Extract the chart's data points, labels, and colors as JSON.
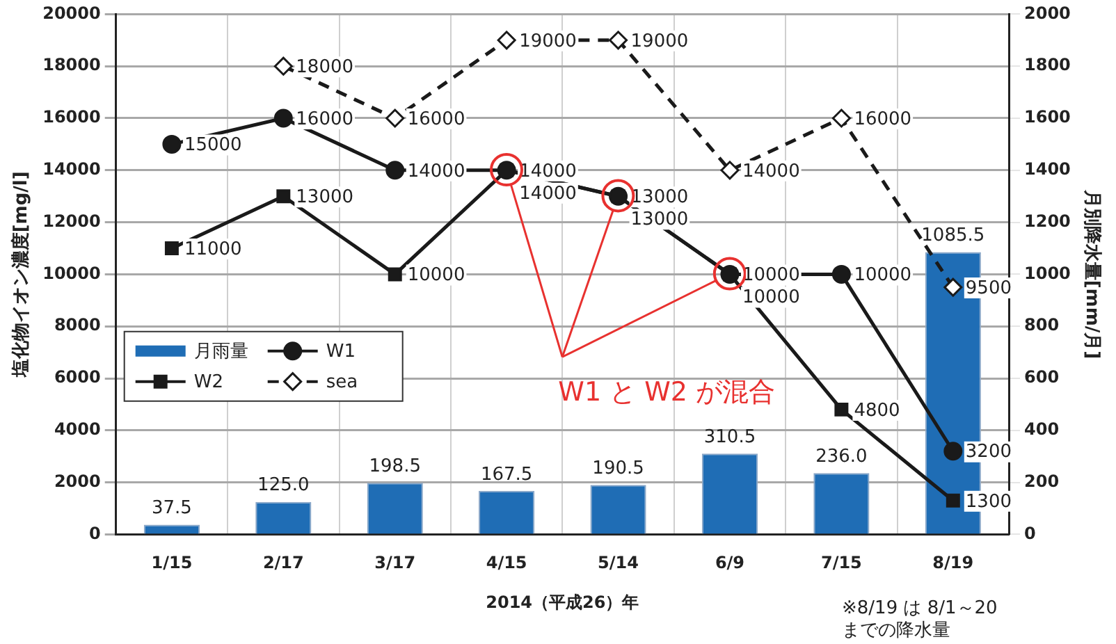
{
  "chart_data": {
    "type": "line",
    "xlabel": "2014（平成26）年",
    "ylabel": "塩化物イオン濃度[mg/l]",
    "y2label": "月別降水量[mm/月]",
    "categories": [
      "1/15",
      "2/17",
      "3/17",
      "4/15",
      "5/14",
      "6/9",
      "7/15",
      "8/19"
    ],
    "series": [
      {
        "name": "月雨量",
        "type": "bar",
        "axis": "y2",
        "color": "#1f6db5",
        "values": [
          37.5,
          125.0,
          198.5,
          167.5,
          190.5,
          310.5,
          236.0,
          1085.5
        ],
        "value_labels": [
          "37.5",
          "125.0",
          "198.5",
          "167.5",
          "190.5",
          "310.5",
          "236.0",
          "1085.5"
        ]
      },
      {
        "name": "W1",
        "color": "#1a1a1a",
        "marker": "circle",
        "line_style": "solid",
        "values": [
          15000,
          16000,
          14000,
          14000,
          13000,
          10000,
          10000,
          3200
        ],
        "value_labels": [
          "15000",
          "16000",
          "14000",
          "14000",
          "13000",
          "10000",
          "10000",
          "3200"
        ]
      },
      {
        "name": "W2",
        "color": "#1a1a1a",
        "marker": "square",
        "line_style": "solid",
        "values": [
          11000,
          13000,
          10000,
          14000,
          13000,
          10000,
          4800,
          1300
        ],
        "value_labels": [
          "11000",
          "13000",
          "10000",
          "14000",
          "13000",
          "10000",
          "4800",
          "1300"
        ]
      },
      {
        "name": "sea",
        "color": "#1a1a1a",
        "marker": "diamond",
        "line_style": "dashed",
        "values": [
          null,
          18000,
          16000,
          19000,
          19000,
          14000,
          16000,
          9500
        ],
        "value_labels": [
          null,
          "18000",
          "16000",
          "19000",
          "19000",
          "14000",
          "16000",
          "9500"
        ]
      }
    ],
    "ylim": [
      0,
      20000
    ],
    "yticks": [
      0,
      2000,
      4000,
      6000,
      8000,
      10000,
      12000,
      14000,
      16000,
      18000,
      20000
    ],
    "y2lim": [
      0,
      2000
    ],
    "y2ticks": [
      0,
      200,
      400,
      600,
      800,
      1000,
      1200,
      1400,
      1600,
      1800,
      2000
    ],
    "grid": true,
    "legend": "bottom left",
    "annotations": [
      "W1 と W2 が混合",
      "※8/19 は 8/1～20\nまでの降水量"
    ]
  }
}
